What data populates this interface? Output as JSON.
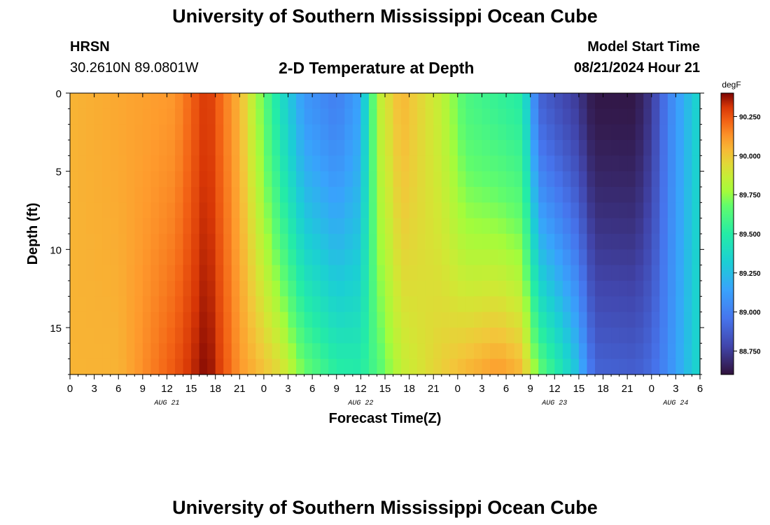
{
  "header": {
    "title": "University of Southern Mississippi Ocean Cube",
    "station_name": "HRSN",
    "coordinates": "30.2610N  89.0801W",
    "subtitle": "2-D Temperature at Depth",
    "model_start_label": "Model Start Time",
    "model_start_value": "08/21/2024 Hour 21"
  },
  "footer": {
    "title": "University of Southern Mississippi Ocean Cube"
  },
  "chart_data": {
    "type": "heatmap",
    "title": "2-D Temperature at Depth",
    "xlabel": "Forecast Time(Z)",
    "ylabel": "Depth (ft)",
    "x_ticks": [
      "0",
      "3",
      "6",
      "9",
      "12",
      "15",
      "18",
      "21",
      "0",
      "3",
      "6",
      "9",
      "12",
      "15",
      "18",
      "21",
      "0",
      "3",
      "6",
      "9",
      "12",
      "15",
      "18",
      "21",
      "0",
      "3",
      "6"
    ],
    "x_range_hours": [
      0,
      78
    ],
    "date_labels": [
      {
        "label": "AUG 21",
        "hour": 12
      },
      {
        "label": "AUG 22",
        "hour": 36
      },
      {
        "label": "AUG 23",
        "hour": 60
      },
      {
        "label": "AUG 24",
        "hour": 75
      }
    ],
    "y_ticks": [
      "0",
      "5",
      "10",
      "15"
    ],
    "y_range_ft": [
      0,
      18
    ],
    "colorbar": {
      "unit": "degF",
      "min": 88.6,
      "max": 90.4,
      "tick_labels": [
        "90.250",
        "90.000",
        "89.750",
        "89.500",
        "89.250",
        "89.000",
        "88.750"
      ]
    },
    "anchor_hours": [
      0,
      6,
      13,
      17,
      21,
      26,
      29,
      33,
      36,
      38,
      41,
      46,
      49,
      53,
      56,
      58,
      61,
      63,
      64,
      65,
      70,
      72,
      74,
      78
    ],
    "surface_temp_degF": [
      90.05,
      90.08,
      90.12,
      90.32,
      90.05,
      89.42,
      89.1,
      89.0,
      89.15,
      89.82,
      90.05,
      89.85,
      89.62,
      89.55,
      89.5,
      88.9,
      88.8,
      88.74,
      88.66,
      88.62,
      88.62,
      88.74,
      89.0,
      89.38
    ],
    "bottom_temp_degF": [
      90.05,
      90.05,
      90.25,
      90.4,
      90.12,
      89.95,
      89.7,
      89.52,
      89.5,
      89.62,
      89.85,
      89.98,
      90.05,
      90.12,
      90.05,
      89.7,
      89.45,
      89.25,
      89.05,
      88.9,
      88.88,
      88.93,
      89.05,
      89.38
    ]
  }
}
